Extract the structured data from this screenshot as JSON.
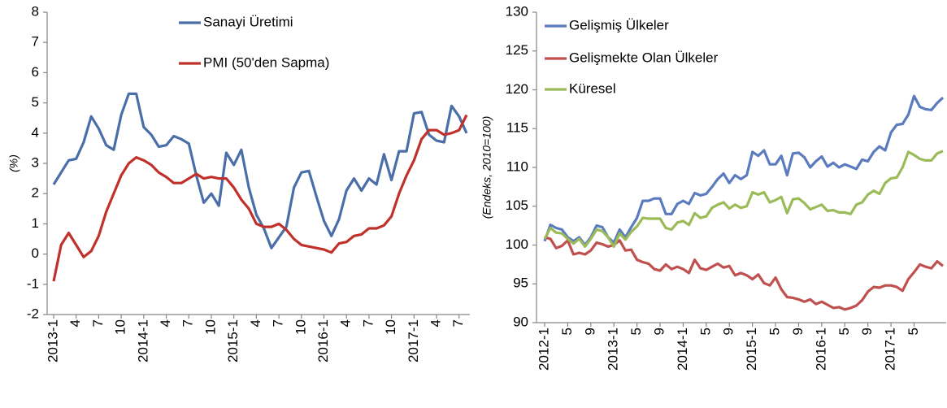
{
  "chart_data": [
    {
      "type": "line",
      "y_label": "(%)",
      "categories": [
        "2013-1",
        null,
        null,
        "4",
        null,
        null,
        "7",
        null,
        null,
        "10",
        null,
        null,
        "2014-1",
        null,
        null,
        "4",
        null,
        null,
        "7",
        null,
        null,
        "10",
        null,
        null,
        "2015-1",
        null,
        null,
        "4",
        null,
        null,
        "7",
        null,
        null,
        "10",
        null,
        null,
        "2016-1",
        null,
        null,
        "4",
        null,
        null,
        "7",
        null,
        null,
        "10",
        null,
        null,
        "2017-1",
        null,
        null,
        "4",
        null,
        null,
        "7",
        null
      ],
      "series": [
        {
          "name": "Sanayi Üretimi",
          "color": "#4a6fa8",
          "values": [
            2.3,
            2.7,
            3.1,
            3.15,
            3.7,
            4.55,
            4.15,
            3.6,
            3.45,
            4.6,
            5.3,
            5.3,
            4.2,
            3.95,
            3.55,
            3.6,
            3.9,
            3.8,
            3.65,
            2.6,
            1.7,
            2.0,
            1.6,
            3.35,
            2.95,
            3.45,
            2.2,
            1.3,
            0.85,
            0.2,
            0.55,
            0.9,
            2.2,
            2.7,
            2.75,
            1.9,
            1.1,
            0.6,
            1.15,
            2.1,
            2.5,
            2.1,
            2.5,
            2.3,
            3.3,
            2.45,
            3.4,
            3.4,
            4.65,
            4.7,
            3.95,
            3.75,
            3.7,
            4.9,
            4.55,
            4.0
          ]
        },
        {
          "name": "PMI (50'den Sapma)",
          "color": "#c0312b",
          "values": [
            -0.9,
            0.3,
            0.7,
            0.3,
            -0.1,
            0.1,
            0.6,
            1.4,
            2.0,
            2.6,
            3.0,
            3.2,
            3.1,
            2.95,
            2.7,
            2.55,
            2.35,
            2.35,
            2.5,
            2.65,
            2.5,
            2.55,
            2.5,
            2.5,
            2.2,
            1.8,
            1.5,
            1.0,
            0.9,
            0.9,
            1.0,
            0.8,
            0.5,
            0.3,
            0.25,
            0.2,
            0.15,
            0.05,
            0.35,
            0.4,
            0.6,
            0.65,
            0.85,
            0.85,
            0.95,
            1.25,
            2.0,
            2.6,
            3.1,
            3.8,
            4.1,
            4.1,
            3.95,
            4.0,
            4.1,
            4.6
          ]
        }
      ],
      "ylim": [
        -2,
        8
      ],
      "yticks": [
        -2,
        -1,
        0,
        1,
        2,
        3,
        4,
        5,
        6,
        7,
        8
      ],
      "grid": false
    },
    {
      "type": "line",
      "y_label": "(Endeks, 2010=100)",
      "categories": [
        "2012-1",
        null,
        null,
        null,
        "5",
        null,
        null,
        null,
        "9",
        null,
        null,
        null,
        "2013-1",
        null,
        null,
        null,
        "5",
        null,
        null,
        null,
        "9",
        null,
        null,
        null,
        "2014-1",
        null,
        null,
        null,
        "5",
        null,
        null,
        null,
        "9",
        null,
        null,
        null,
        "2015-1",
        null,
        null,
        null,
        "5",
        null,
        null,
        null,
        "9",
        null,
        null,
        null,
        "2016-1",
        null,
        null,
        null,
        "5",
        null,
        null,
        null,
        "9",
        null,
        null,
        null,
        "2017-1",
        null,
        null,
        null,
        "5",
        null,
        null,
        null,
        null,
        null
      ],
      "series": [
        {
          "name": "Gelişmiş Ülkeler",
          "color": "#5b7bbf",
          "values": [
            100.5,
            102.6,
            102.2,
            102,
            101,
            100.5,
            101,
            100,
            101,
            102.5,
            102.3,
            101,
            100.3,
            102,
            101,
            102.3,
            103.5,
            105.7,
            105.7,
            106,
            106,
            104,
            104,
            105.3,
            105.7,
            105.3,
            106.7,
            106.4,
            106.6,
            107.5,
            108.5,
            109.2,
            108,
            109,
            108.5,
            109,
            112,
            111.5,
            112.2,
            110.4,
            110.4,
            111.5,
            109,
            111.8,
            111.9,
            111.3,
            110,
            110.8,
            111.4,
            110.1,
            110.6,
            110,
            110.4,
            110.1,
            109.8,
            111,
            110.8,
            112,
            112.7,
            112.2,
            114.5,
            115.5,
            115.6,
            116.8,
            119.2,
            117.8,
            117.5,
            117.4,
            118.3,
            119
          ]
        },
        {
          "name": "Gelişmekte Olan Ülkeler",
          "color": "#c0504d",
          "values": [
            101,
            100.8,
            99.6,
            99.9,
            100.6,
            98.8,
            99,
            98.8,
            99.3,
            100.3,
            100.1,
            99.8,
            100,
            100.6,
            99.3,
            99.4,
            98.1,
            97.8,
            97.6,
            96.9,
            96.7,
            97.5,
            96.9,
            97.2,
            96.9,
            96.4,
            98.1,
            97,
            96.8,
            97.2,
            97.6,
            97.1,
            97.3,
            96.1,
            96.4,
            96.1,
            95.6,
            96.2,
            95.1,
            94.8,
            95.8,
            94.3,
            93.3,
            93.2,
            93,
            92.7,
            93,
            92.4,
            92.7,
            92.3,
            91.9,
            92,
            91.7,
            91.9,
            92.2,
            92.9,
            94,
            94.6,
            94.5,
            94.8,
            94.8,
            94.6,
            94.1,
            95.6,
            96.5,
            97.5,
            97.2,
            97,
            97.9,
            97.3
          ]
        },
        {
          "name": "Küresel",
          "color": "#9bbb59",
          "values": [
            100.8,
            102.2,
            101.6,
            101.5,
            100.8,
            100.2,
            100.8,
            99.8,
            100.8,
            102,
            101.8,
            101,
            99.8,
            101.5,
            100.7,
            101.7,
            102.4,
            103.5,
            103.4,
            103.4,
            103.4,
            102.2,
            102,
            102.9,
            103.1,
            102.6,
            104.1,
            103.5,
            103.7,
            104.8,
            105.2,
            105.5,
            104.7,
            105.2,
            104.8,
            105,
            106.8,
            106.5,
            106.8,
            105.5,
            105.8,
            106.2,
            104.1,
            105.9,
            106,
            105.4,
            104.6,
            104.9,
            105.2,
            104.4,
            104.5,
            104.2,
            104.2,
            104,
            105.2,
            105.5,
            106.5,
            107,
            106.6,
            108,
            108.6,
            108.7,
            110,
            112,
            111.6,
            111.1,
            110.9,
            110.9,
            111.8,
            112.1
          ]
        }
      ],
      "ylim": [
        90,
        130
      ],
      "yticks": [
        90,
        95,
        100,
        105,
        110,
        115,
        120,
        125,
        130
      ],
      "grid": false
    }
  ]
}
